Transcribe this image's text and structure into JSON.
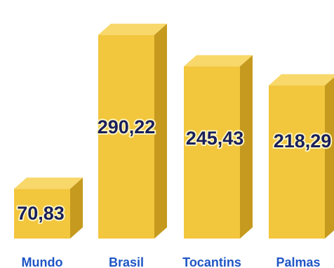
{
  "chart_data": {
    "type": "bar",
    "categories": [
      "Mundo",
      "Brasil",
      "Tocantins",
      "Palmas"
    ],
    "values": [
      70.83,
      290.22,
      245.43,
      218.29
    ],
    "value_labels": [
      "70,83",
      "290,22",
      "245,43",
      "218,29"
    ],
    "title": "",
    "xlabel": "",
    "ylabel": "",
    "ylim": [
      0,
      330
    ],
    "grid": false,
    "legend": "none",
    "style": "3d-bars"
  },
  "colors": {
    "bar_front": "#f2c63d",
    "bar_top": "#f8d86a",
    "bar_side": "#c59a1e",
    "value_text": "#1a1f5c",
    "category_text": "#1f56c4"
  }
}
